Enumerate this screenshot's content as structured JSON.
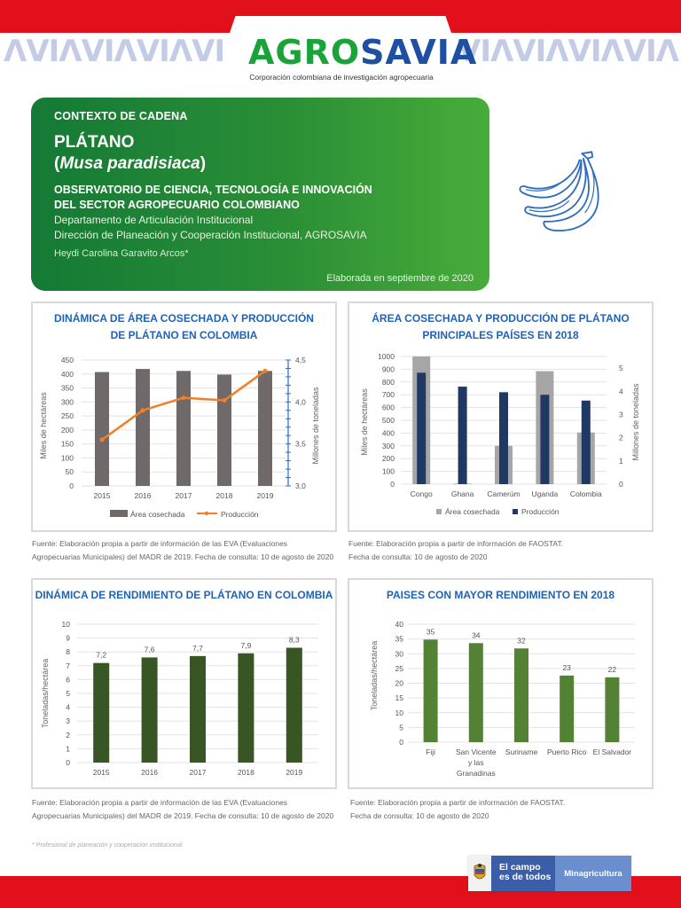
{
  "header": {
    "stripe_pattern_left": "ΛVIΛVIΛVIΛVIΛVIΛVI",
    "stripe_pattern_right": "VIΛVIΛVIΛVIΛVIΛVIΛ",
    "logo_green": "AGRO",
    "logo_blue": "SAVIA",
    "logo_subtitle": "Corporación colombiana de investigación agropecuaria",
    "colors": {
      "red": "#e1101a",
      "green": "#1aa339",
      "blue": "#1f4fa0"
    }
  },
  "hero": {
    "kicker": "CONTEXTO DE CADENA",
    "title": "PLÁTANO",
    "scientific_open": "(",
    "scientific_name": "Musa paradisiaca",
    "scientific_close": ")",
    "observatory_line1": "OBSERVATORIO DE CIENCIA, TECNOLOGÍA E INNOVACIÓN",
    "observatory_line2": "DEL SECTOR AGROPECUARIO COLOMBIANO",
    "department": "Departamento de Articulación Institucional",
    "direction": "Dirección de Planeación y Cooperación Institucional, AGROSAVIA",
    "author": "Heydi Carolina Garavito Arcos*",
    "date": "Elaborada en septiembre de 2020",
    "icon": "banana-icon"
  },
  "sources": {
    "eva_line1": "Fuente: Elaboración propia a partir de información de las EVA (Evaluaciones",
    "eva_line2": "Agropecuarias Municipales) del MADR de 2019. Fecha de consulta: 10 de agosto de 2020",
    "fao_line1": "Fuente: Elaboración propia a partir de información de FAOSTAT.",
    "fao_line2": "Fecha de consulta: 10 de agosto de 2020"
  },
  "footnote": "* Profesional de planeación y cooperación institucional",
  "footer": {
    "slogan_line1": "El campo",
    "slogan_line2": "es de todos",
    "ministry": "Minagricultura",
    "crest_icon": "colombia-crest-icon"
  },
  "chart_data": [
    {
      "type": "bar+line",
      "title_line1": "DINÁMICA DE ÁREA COSECHADA Y PRODUCCIÓN",
      "title_line2": "DE PLÁTANO EN COLOMBIA",
      "categories": [
        "2015",
        "2016",
        "2017",
        "2018",
        "2019"
      ],
      "series": [
        {
          "name": "Área cosechada",
          "type": "bar",
          "axis": "left",
          "color": "#6f6a69",
          "values": [
            407,
            418,
            411,
            398,
            411
          ]
        },
        {
          "name": "Producción",
          "type": "line",
          "axis": "right",
          "color": "#f07f28",
          "values": [
            3.55,
            3.9,
            4.05,
            4.02,
            4.37
          ]
        }
      ],
      "ylabel": "Miles de hectáreas",
      "ylabel_right": "Millones de toneladas",
      "ylim": [
        0,
        450
      ],
      "yticks": [
        "0",
        "50",
        "100",
        "150",
        "200",
        "250",
        "300",
        "350",
        "400",
        "450"
      ],
      "ylim_right": [
        3.0,
        4.5
      ],
      "yticks_right": [
        "3,0",
        "3,5",
        "4,0",
        "4,5"
      ],
      "legend": [
        "Área cosechada",
        "Producción"
      ],
      "legend_position": "bottom",
      "grid": true
    },
    {
      "type": "bar",
      "title_line1": "ÁREA COSECHADA Y PRODUCCIÓN DE PLÁTANO",
      "title_line2": "PRINCIPALES PAÍSES EN  2018",
      "categories": [
        "Congo",
        "Ghana",
        "Camerúm",
        "Uganda",
        "Colombia"
      ],
      "series": [
        {
          "name": "Área cosechada",
          "axis": "left",
          "color": "#a6a6a6",
          "values": [
            1000,
            5,
            300,
            885,
            405
          ]
        },
        {
          "name": "Producción",
          "axis": "right",
          "color": "#1f3864",
          "values": [
            4.8,
            4.2,
            3.96,
            3.85,
            3.6
          ]
        }
      ],
      "ylabel": "Miles de hectáreas",
      "ylabel_right": "Millones  de toneladas",
      "ylim": [
        0,
        1000
      ],
      "yticks": [
        "0",
        "100",
        "200",
        "300",
        "400",
        "500",
        "600",
        "700",
        "800",
        "900",
        "1000"
      ],
      "ylim_right": [
        0,
        5.5
      ],
      "yticks_right": [
        "0",
        "1",
        "2",
        "3",
        "4",
        "5"
      ],
      "legend": [
        "Área cosechada",
        "Producción"
      ],
      "legend_position": "bottom",
      "grid": true
    },
    {
      "type": "bar",
      "title": "DINÁMICA DE RENDIMIENTO DE PLÁTANO EN COLOMBIA",
      "categories": [
        "2015",
        "2016",
        "2017",
        "2018",
        "2019"
      ],
      "values": [
        7.2,
        7.6,
        7.7,
        7.9,
        8.3
      ],
      "labels": [
        "7,2",
        "7,6",
        "7,7",
        "7,9",
        "8,3"
      ],
      "color": "#375623",
      "ylabel": "Toneladas/hectárea",
      "ylim": [
        0,
        10
      ],
      "yticks": [
        "0",
        "1",
        "2",
        "3",
        "4",
        "5",
        "6",
        "7",
        "8",
        "9",
        "10"
      ],
      "grid": true
    },
    {
      "type": "bar",
      "title": "PAISES CON MAYOR RENDIMIENTO EN 2018",
      "categories": [
        "Fiji",
        "San Vicente y las Granadinas",
        "Suriname",
        "Puerto Rico",
        "El Salvador"
      ],
      "category_lines": [
        [
          "Fiji"
        ],
        [
          "San Vicente",
          "y las",
          "Granadinas"
        ],
        [
          "Suriname"
        ],
        [
          "Puerto Rico"
        ],
        [
          "El Salvador"
        ]
      ],
      "values": [
        35,
        34,
        32,
        23,
        22
      ],
      "display_values": [
        34.8,
        33.6,
        31.8,
        22.6,
        22.0
      ],
      "color": "#548235",
      "ylabel": "Toneladas/hectárea",
      "ylim": [
        0,
        40
      ],
      "yticks": [
        "0",
        "5",
        "10",
        "15",
        "20",
        "25",
        "30",
        "35",
        "40"
      ],
      "grid": true
    }
  ]
}
